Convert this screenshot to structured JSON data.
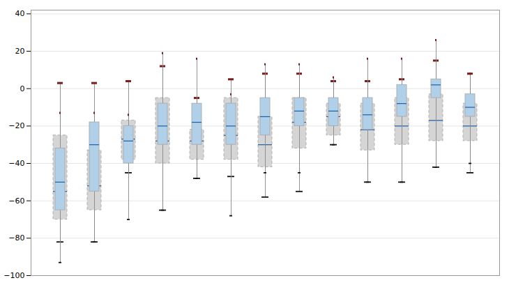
{
  "chart_data": {
    "type": "box",
    "categories": [
      null,
      null,
      null,
      null,
      null,
      null,
      null,
      null,
      null,
      null,
      null,
      null,
      null
    ],
    "series": [
      {
        "color": "#d5d5d5",
        "line_style": "dashed",
        "values": [
          {
            "whisker_low": -82,
            "q1": -70,
            "median": -55,
            "q3": -25,
            "whisker_high": 3
          },
          {
            "whisker_low": -82,
            "q1": -65,
            "median": -52,
            "q3": -33,
            "whisker_high": 3
          },
          {
            "whisker_low": -45,
            "q1": -38,
            "median": -27,
            "q3": -17,
            "whisker_high": 4
          },
          {
            "whisker_low": -65,
            "q1": -40,
            "median": -28,
            "q3": -5,
            "whisker_high": 12
          },
          {
            "whisker_low": -48,
            "q1": -38,
            "median": -28,
            "q3": -22,
            "whisker_high": -5
          },
          {
            "whisker_low": -47,
            "q1": -38,
            "median": -25,
            "q3": -5,
            "whisker_high": 5
          },
          {
            "whisker_low": -58,
            "q1": -42,
            "median": -30,
            "q3": -15,
            "whisker_high": 8
          },
          {
            "whisker_low": -55,
            "q1": -32,
            "median": -18,
            "q3": -5,
            "whisker_high": 8
          },
          {
            "whisker_low": -30,
            "q1": -25,
            "median": -15,
            "q3": -8,
            "whisker_high": 4
          },
          {
            "whisker_low": -50,
            "q1": -33,
            "median": -22,
            "q3": -8,
            "whisker_high": 4
          },
          {
            "whisker_low": -50,
            "q1": -30,
            "median": -20,
            "q3": -5,
            "whisker_high": 5
          },
          {
            "whisker_low": -42,
            "q1": -28,
            "median": -17,
            "q3": -3,
            "whisker_high": 15
          },
          {
            "whisker_low": -45,
            "q1": -28,
            "median": -20,
            "q3": -8,
            "whisker_high": 8
          }
        ]
      },
      {
        "color": "#b0d0ea",
        "line_style": "solid",
        "values": [
          {
            "whisker_low": -93,
            "q1": -65,
            "median": -50,
            "q3": -32,
            "whisker_high": -13
          },
          {
            "whisker_low": -82,
            "q1": -55,
            "median": -30,
            "q3": -18,
            "whisker_high": -13
          },
          {
            "whisker_low": -70,
            "q1": -40,
            "median": -28,
            "q3": -20,
            "whisker_high": -14
          },
          {
            "whisker_low": -65,
            "q1": -30,
            "median": -20,
            "q3": -8,
            "whisker_high": 19
          },
          {
            "whisker_low": -48,
            "q1": -30,
            "median": -18,
            "q3": -8,
            "whisker_high": 16
          },
          {
            "whisker_low": -68,
            "q1": -30,
            "median": -20,
            "q3": -8,
            "whisker_high": -3
          },
          {
            "whisker_low": -45,
            "q1": -25,
            "median": -15,
            "q3": -5,
            "whisker_high": 13
          },
          {
            "whisker_low": -45,
            "q1": -20,
            "median": -12,
            "q3": -5,
            "whisker_high": 13
          },
          {
            "whisker_low": -30,
            "q1": -20,
            "median": -12,
            "q3": -5,
            "whisker_high": 6
          },
          {
            "whisker_low": -50,
            "q1": -22,
            "median": -14,
            "q3": -5,
            "whisker_high": 16
          },
          {
            "whisker_low": -50,
            "q1": -15,
            "median": -8,
            "q3": 2,
            "whisker_high": 16
          },
          {
            "whisker_low": -42,
            "q1": -5,
            "median": 2,
            "q3": 5,
            "whisker_high": 26
          },
          {
            "whisker_low": -40,
            "q1": -15,
            "median": -10,
            "q3": -3,
            "whisker_high": 8
          }
        ]
      }
    ],
    "ylim": [
      -100,
      42
    ],
    "yticks": [
      -100,
      -80,
      -60,
      -40,
      -20,
      0,
      20,
      40
    ],
    "grid": true,
    "tick_labels": "y"
  }
}
